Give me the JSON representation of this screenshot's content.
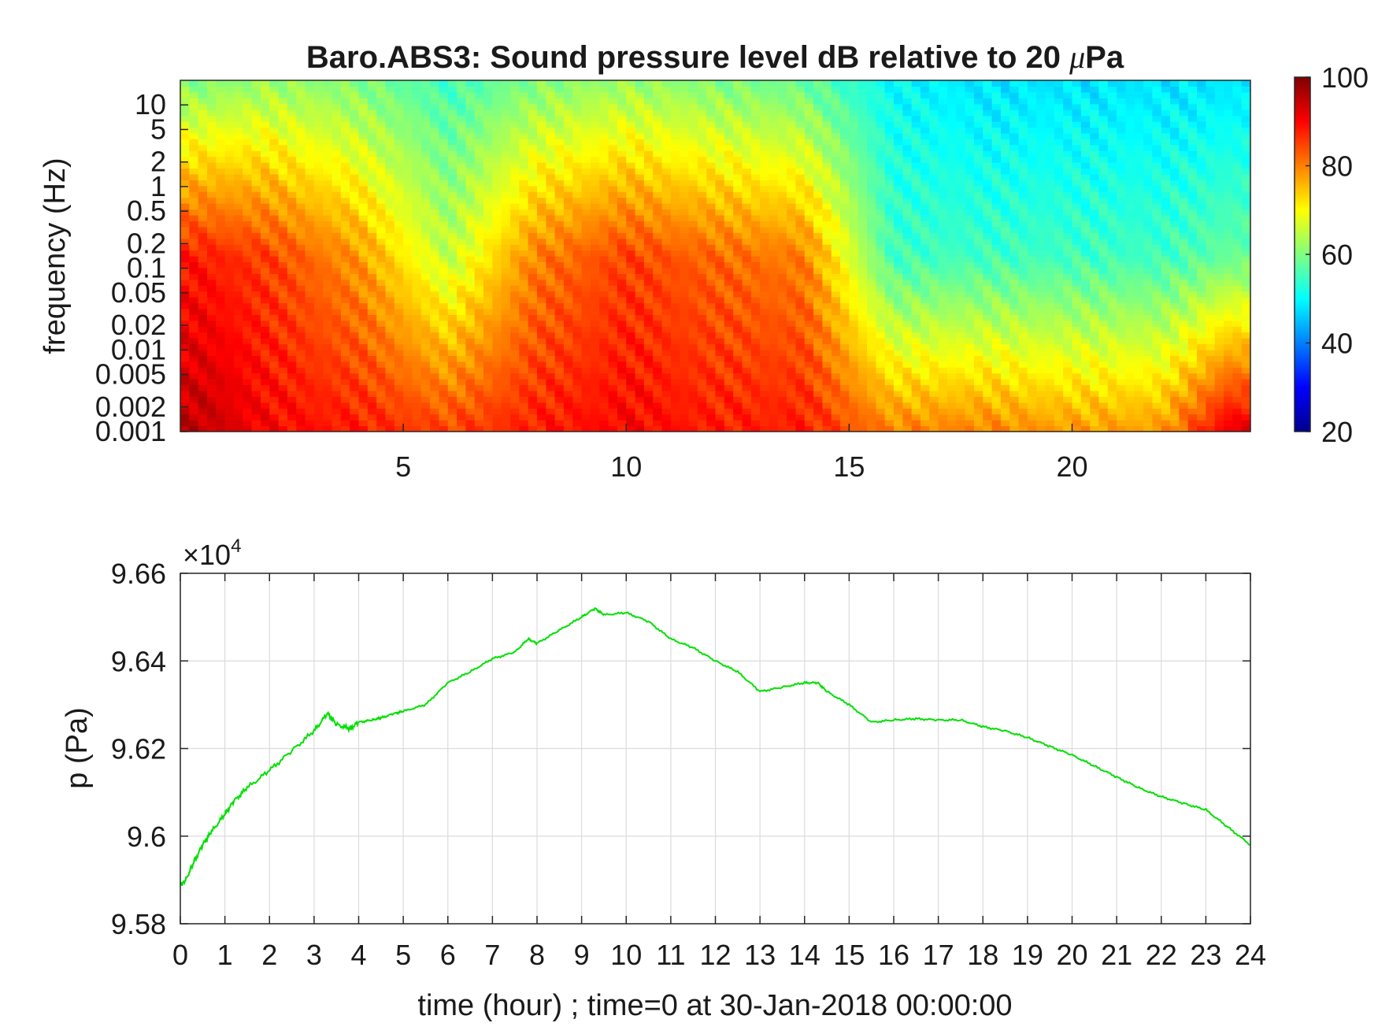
{
  "chart_data": [
    {
      "type": "heatmap",
      "title_pre": "Baro.ABS3: Sound pressure level dB relative to 20 ",
      "title_mu": "μ",
      "title_post": "Pa",
      "ylabel": "frequency (Hz)",
      "xlabel": "",
      "xlim": [
        0,
        24
      ],
      "ylim": [
        0.001,
        20
      ],
      "y_scale": "log",
      "x_ticks": [
        5,
        10,
        15,
        20
      ],
      "x_tick_labels": [
        "5",
        "10",
        "15",
        "20"
      ],
      "y_ticks": [
        0.001,
        0.002,
        0.005,
        0.01,
        0.02,
        0.05,
        0.1,
        0.2,
        0.5,
        1,
        2,
        5,
        10
      ],
      "y_tick_labels": [
        "0.001",
        "0.002",
        "0.005",
        "0.01",
        "0.02",
        "0.05",
        "0.1",
        "0.2",
        "0.5",
        "1",
        "2",
        "5",
        "10"
      ],
      "colormap": "jet",
      "colorbar": {
        "range": [
          20,
          100
        ],
        "ticks": [
          20,
          40,
          60,
          80,
          100
        ],
        "tick_labels": [
          "20",
          "40",
          "60",
          "80",
          "100"
        ]
      },
      "approx_levels_db": {
        "description": "",
        "x_hours": [
          0.5,
          2,
          4,
          6,
          8,
          10,
          12,
          14,
          16,
          18,
          20,
          22,
          23.5
        ],
        "high_freq_band_db": [
          60,
          62,
          60,
          55,
          60,
          62,
          60,
          58,
          50,
          48,
          48,
          48,
          48
        ],
        "mid_freq_band_db": [
          88,
          85,
          78,
          65,
          80,
          85,
          82,
          80,
          55,
          55,
          55,
          55,
          58
        ],
        "low_freq_band_db": [
          95,
          90,
          88,
          85,
          88,
          90,
          88,
          88,
          80,
          80,
          78,
          78,
          92
        ]
      },
      "grid": false
    },
    {
      "type": "line",
      "ylabel": "p (Pa)",
      "xlabel": "time (hour) ; time=0 at 30-Jan-2018 00:00:00",
      "exponent_label": "×10",
      "exponent_power": "4",
      "xlim": [
        0,
        24
      ],
      "ylim": [
        95800,
        96600
      ],
      "x_ticks": [
        0,
        1,
        2,
        3,
        4,
        5,
        6,
        7,
        8,
        9,
        10,
        11,
        12,
        13,
        14,
        15,
        16,
        17,
        18,
        19,
        20,
        21,
        22,
        23,
        24
      ],
      "x_tick_labels": [
        "0",
        "1",
        "2",
        "3",
        "4",
        "5",
        "6",
        "7",
        "8",
        "9",
        "10",
        "11",
        "12",
        "13",
        "14",
        "15",
        "16",
        "17",
        "18",
        "19",
        "20",
        "21",
        "22",
        "23",
        "24"
      ],
      "y_ticks": [
        95800,
        96000,
        96200,
        96400,
        96600
      ],
      "y_tick_labels": [
        "9.58",
        "9.6",
        "9.62",
        "9.64",
        "9.66"
      ],
      "grid": true,
      "series": [
        {
          "color": "#00e000",
          "x": [
            0,
            0.1,
            0.3,
            0.5,
            0.7,
            1.0,
            1.2,
            1.5,
            2.0,
            2.5,
            3.0,
            3.3,
            3.5,
            3.8,
            4.0,
            4.3,
            4.5,
            4.8,
            5.0,
            5.5,
            6.0,
            6.5,
            7.0,
            7.5,
            7.8,
            8.0,
            8.5,
            9.0,
            9.3,
            9.5,
            10.0,
            10.5,
            11.0,
            11.5,
            12.0,
            12.5,
            13.0,
            13.5,
            14.0,
            14.3,
            14.5,
            15.0,
            15.5,
            16.0,
            16.5,
            17.0,
            17.5,
            18.0,
            18.5,
            19.0,
            19.5,
            20.0,
            20.5,
            21.0,
            21.5,
            22.0,
            22.5,
            23.0,
            23.5,
            24.0
          ],
          "y": [
            95890,
            95895,
            95940,
            95980,
            96010,
            96050,
            96080,
            96110,
            96150,
            96195,
            96240,
            96280,
            96255,
            96245,
            96260,
            96265,
            96270,
            96280,
            96285,
            96300,
            96350,
            96375,
            96405,
            96420,
            96450,
            96440,
            96470,
            96500,
            96520,
            96505,
            96510,
            96490,
            96450,
            96430,
            96400,
            96375,
            96330,
            96340,
            96350,
            96350,
            96330,
            96300,
            96260,
            96265,
            96268,
            96265,
            96265,
            96250,
            96240,
            96225,
            96205,
            96185,
            96160,
            96135,
            96110,
            96090,
            96075,
            96060,
            96020,
            95980
          ]
        }
      ]
    }
  ]
}
